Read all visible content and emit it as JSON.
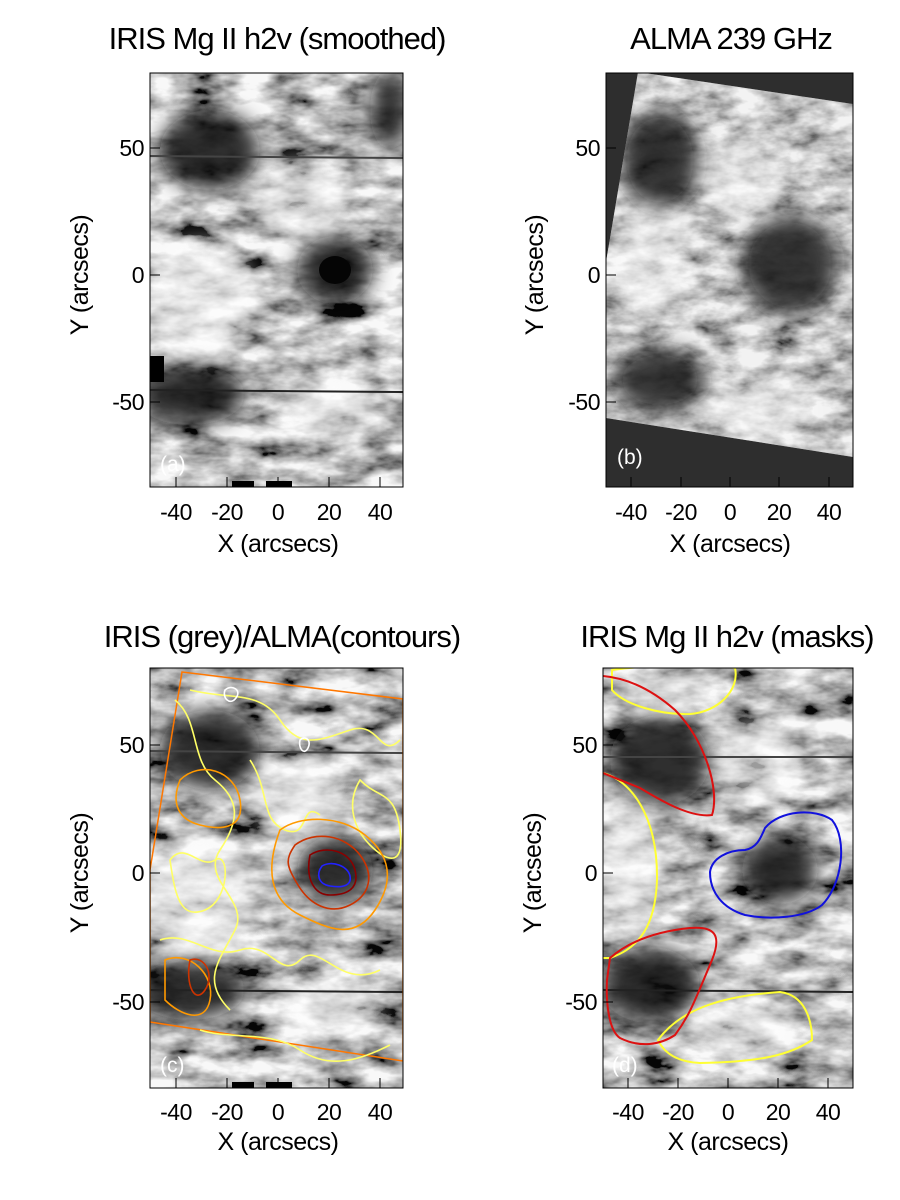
{
  "figure": {
    "panels": [
      {
        "id": "a",
        "title": "IRIS Mg II h2v (smoothed)",
        "label": "(a)",
        "xlabel": "X (arcsecs)",
        "ylabel": "Y (arcsecs)",
        "xlim": [
          -50,
          50
        ],
        "ylim": [
          -83,
          81
        ],
        "xticks": [
          "-40",
          "-20",
          "0",
          "20",
          "40"
        ],
        "yticks": [
          "50",
          "0",
          "-50"
        ],
        "image": "grayscale-solar-intensity",
        "overlay": "none"
      },
      {
        "id": "b",
        "title": "ALMA 239 GHz",
        "label": "(b)",
        "xlabel": "X (arcsecs)",
        "ylabel": "Y (arcsecs)",
        "xlim": [
          -50,
          50
        ],
        "ylim": [
          -83,
          81
        ],
        "xticks": [
          "-40",
          "-20",
          "0",
          "20",
          "40"
        ],
        "yticks": [
          "50",
          "0",
          "-50"
        ],
        "image": "grayscale-solar-brightness-rotated-field",
        "overlay": "none"
      },
      {
        "id": "c",
        "title": "IRIS (grey)/ALMA(contours)",
        "label": "(c)",
        "xlabel": "X (arcsecs)",
        "ylabel": "Y (arcsecs)",
        "xlim": [
          -50,
          50
        ],
        "ylim": [
          -83,
          81
        ],
        "xticks": [
          "-40",
          "-20",
          "0",
          "20",
          "40"
        ],
        "yticks": [
          "50",
          "0",
          "-50"
        ],
        "image": "grayscale-solar-intensity",
        "overlay": "contours",
        "contour_colors": [
          "#ffff66",
          "#ff9900",
          "#cc3300",
          "#8a0000",
          "#2222ff",
          "#ffffff"
        ]
      },
      {
        "id": "d",
        "title": "IRIS Mg II h2v (masks)",
        "label": "(d)",
        "xlabel": "X (arcsecs)",
        "ylabel": "Y (arcsecs)",
        "xlim": [
          -50,
          50
        ],
        "ylim": [
          -83,
          81
        ],
        "xticks": [
          "-40",
          "-20",
          "0",
          "20",
          "40"
        ],
        "yticks": [
          "50",
          "0",
          "-50"
        ],
        "image": "grayscale-solar-intensity",
        "overlay": "masks",
        "mask_colors": {
          "bright": "#ffff33",
          "dark": "#dd1111",
          "sunspot": "#1111dd"
        }
      }
    ]
  }
}
